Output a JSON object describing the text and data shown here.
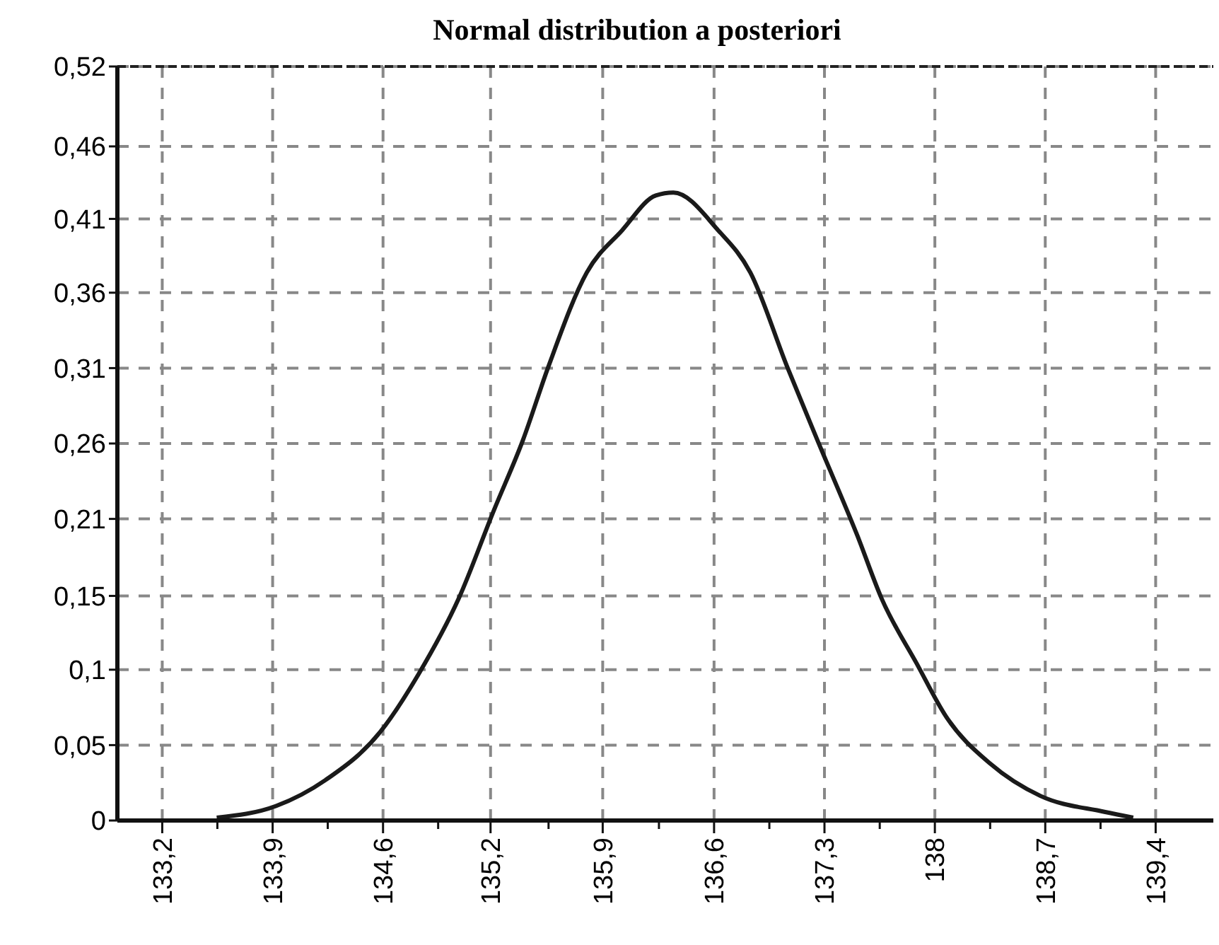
{
  "chart_data": {
    "type": "line",
    "title": "Normal distribution a posteriori",
    "series": [
      {
        "color": "#1a1a1a",
        "x": [
          133.54,
          133.91,
          134.22,
          134.56,
          134.8,
          135.05,
          135.27,
          135.45,
          135.61,
          135.85,
          136.07,
          136.28,
          136.39,
          136.67,
          136.87,
          137.1,
          137.29,
          137.54,
          137.69,
          137.91,
          138.09,
          138.37,
          138.68,
          139.08,
          139.26
        ],
        "values": [
          0.002,
          0.01,
          0.028,
          0.061,
          0.101,
          0.153,
          0.214,
          0.262,
          0.313,
          0.378,
          0.407,
          0.431,
          0.433,
          0.407,
          0.378,
          0.313,
          0.262,
          0.196,
          0.153,
          0.108,
          0.072,
          0.039,
          0.017,
          0.006,
          0.002
        ]
      }
    ],
    "xlim": [
      132.92,
      139.76
    ],
    "xticks": [
      {
        "value": 133.2,
        "label": "133,2"
      },
      {
        "value": 133.544,
        "label": null
      },
      {
        "value": 133.889,
        "label": "133,9"
      },
      {
        "value": 134.233,
        "label": null
      },
      {
        "value": 134.578,
        "label": "134,6"
      },
      {
        "value": 134.922,
        "label": null
      },
      {
        "value": 135.249,
        "label": "135,2"
      },
      {
        "value": 135.611,
        "label": null
      },
      {
        "value": 135.949,
        "label": "135,9"
      },
      {
        "value": 136.3,
        "label": null
      },
      {
        "value": 136.644,
        "label": "136,6"
      },
      {
        "value": 136.989,
        "label": null
      },
      {
        "value": 137.333,
        "label": "137,3"
      },
      {
        "value": 137.678,
        "label": null
      },
      {
        "value": 138.022,
        "label": "138"
      },
      {
        "value": 138.367,
        "label": null
      },
      {
        "value": 138.711,
        "label": "138,7"
      },
      {
        "value": 139.056,
        "label": null
      },
      {
        "value": 139.4,
        "label": "139,4"
      }
    ],
    "ylim": [
      0,
      0.52
    ],
    "yticks": [
      0,
      {
        "value": 0.052,
        "label": "0,05"
      },
      {
        "value": 0.104,
        "label": "0,1"
      },
      {
        "value": 0.1549,
        "label": "0,15"
      },
      {
        "value": 0.208,
        "label": "0,21"
      },
      {
        "value": 0.26,
        "label": "0,26"
      },
      {
        "value": 0.312,
        "label": "0,31"
      },
      {
        "value": 0.364,
        "label": "0,36"
      },
      {
        "value": 0.4149,
        "label": "0,41"
      },
      {
        "value": 0.4649,
        "label": "0,46"
      },
      {
        "value": 0.52,
        "label": "0,52"
      }
    ],
    "grid": true,
    "marker": "none",
    "line_style": "solid"
  }
}
